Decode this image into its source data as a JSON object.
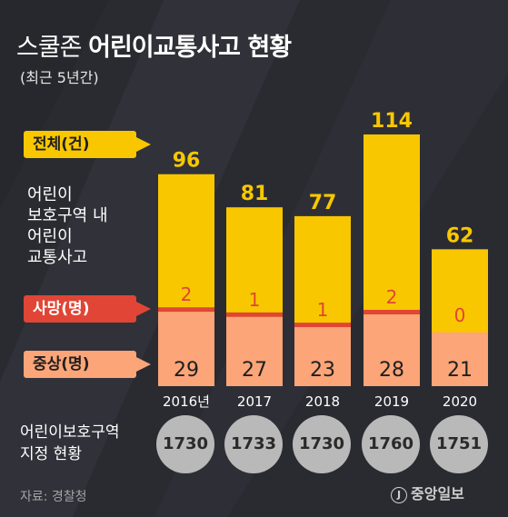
{
  "header": {
    "title_plain": "스쿨존",
    "title_bold": "어린이교통사고 현황",
    "subtitle": "(최근 5년간)"
  },
  "legend": {
    "total": "전체(건)",
    "description": "어린이\n보호구역 내\n어린이\n교통사고",
    "death": "사망(명)",
    "injury": "중상(명)"
  },
  "colors": {
    "total": "#f8c700",
    "death": "#e04535",
    "injury": "#fba578",
    "background": "#2a2b31",
    "circle": "#b9b9b9"
  },
  "chart_data": {
    "type": "bar",
    "categories": [
      "2016년",
      "2017",
      "2018",
      "2019",
      "2020"
    ],
    "series": [
      {
        "name": "전체(건)",
        "values": [
          96,
          81,
          77,
          114,
          62
        ]
      },
      {
        "name": "사망(명)",
        "values": [
          2,
          1,
          1,
          2,
          0
        ]
      },
      {
        "name": "중상(명)",
        "values": [
          29,
          27,
          23,
          28,
          21
        ]
      }
    ],
    "title": "스쿨존 어린이교통사고 현황",
    "subtitle": "(최근 5년간)"
  },
  "zones": {
    "label": "어린이보호구역\n지정 현황",
    "values": [
      "1730",
      "1733",
      "1730",
      "1760",
      "1751"
    ]
  },
  "footer": {
    "source": "자료: 경찰청",
    "logo_mark": "J",
    "logo_text": "중앙일보"
  }
}
